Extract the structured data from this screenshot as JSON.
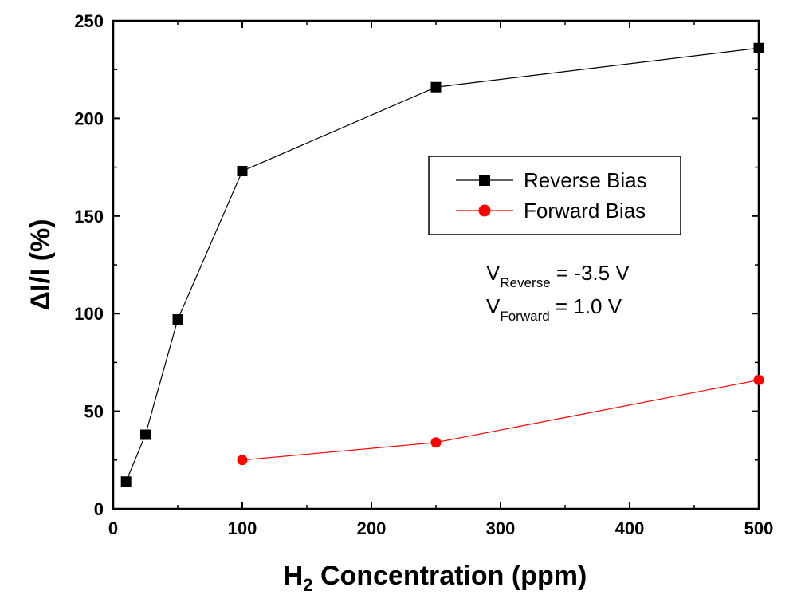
{
  "chart_data": {
    "type": "line",
    "title": "",
    "xlabel": {
      "main": "H",
      "sub": "2",
      "rest": " Concentration (ppm)"
    },
    "ylabel": "ΔI/I (%)",
    "xlim": [
      0,
      500
    ],
    "ylim": [
      0,
      250
    ],
    "xticks": [
      0,
      100,
      200,
      300,
      400,
      500
    ],
    "yticks": [
      0,
      50,
      100,
      150,
      200,
      250
    ],
    "grid": false,
    "legend_position": "center-right",
    "series": [
      {
        "name": "Reverse Bias",
        "color": "#000000",
        "marker": "square",
        "x": [
          10,
          25,
          50,
          100,
          250,
          500
        ],
        "y": [
          14,
          38,
          97,
          173,
          216,
          236
        ]
      },
      {
        "name": "Forward Bias",
        "color": "#ff0000",
        "marker": "circle",
        "x": [
          100,
          250,
          500
        ],
        "y": [
          25,
          34,
          66
        ]
      }
    ],
    "annotations": [
      {
        "main": "V",
        "sub": "Reverse",
        "rest": " = -3.5 V"
      },
      {
        "main": "V",
        "sub": "Forward",
        "rest": " = 1.0 V"
      }
    ]
  }
}
